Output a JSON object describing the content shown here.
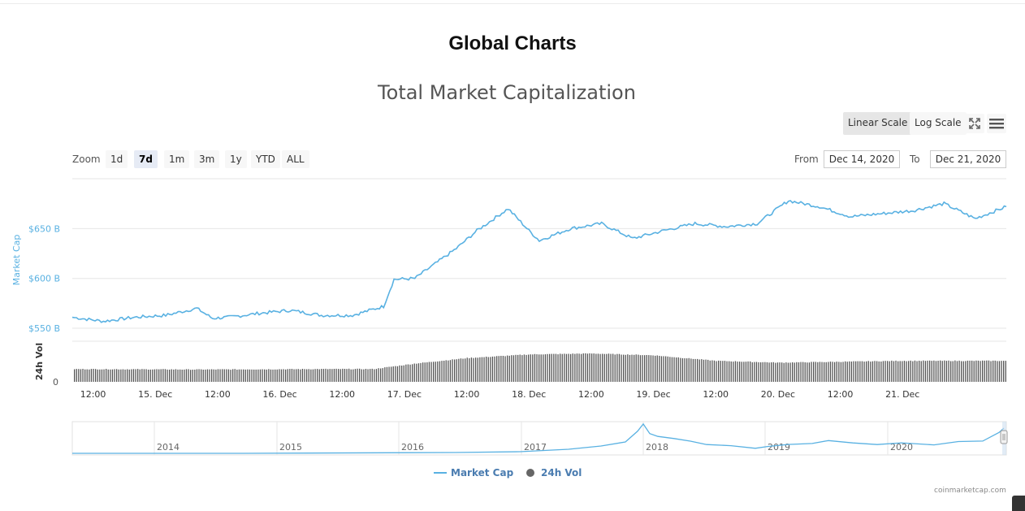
{
  "page": {
    "title": "Global Charts"
  },
  "toolbar": {
    "linear_label": "Linear Scale",
    "log_label": "Log Scale",
    "fullscreen_icon": "fullscreen-icon",
    "menu_icon": "hamburger-menu-icon"
  },
  "zoom": {
    "label": "Zoom",
    "buttons": [
      "1d",
      "7d",
      "1m",
      "3m",
      "1y",
      "YTD",
      "ALL"
    ],
    "active": "7d"
  },
  "range": {
    "from_label": "From",
    "from_value": "Dec 14, 2020",
    "to_label": "To",
    "to_value": "Dec 21, 2020"
  },
  "credits": "coinmarketcap.com",
  "colors": {
    "market_cap": "#59b1e2",
    "volume": "#555555",
    "grid": "#e6e6e6",
    "navigator": "#59b1e2"
  },
  "chart_data": {
    "type": "line",
    "title": "Total Market Capitalization",
    "y_axis_label": "Market Cap",
    "y2_axis_label": "24h Vol",
    "y_ticks": [
      "$550 B",
      "$600 B",
      "$650 B"
    ],
    "y_tick_values": [
      550,
      600,
      650
    ],
    "y_range": [
      537,
      700
    ],
    "y2_ticks": [
      "0"
    ],
    "x_ticks": [
      "12:00",
      "15. Dec",
      "12:00",
      "16. Dec",
      "12:00",
      "17. Dec",
      "12:00",
      "18. Dec",
      "12:00",
      "19. Dec",
      "12:00",
      "20. Dec",
      "12:00",
      "21. Dec"
    ],
    "x_range": [
      "2020-12-14T08:00",
      "2020-12-21T20:00"
    ],
    "legend": [
      "Market Cap",
      "24h Vol"
    ],
    "legend_position": "bottom-center",
    "series": [
      {
        "name": "Market Cap",
        "unit": "B USD",
        "x": [
          "2020-12-14T08:00",
          "2020-12-14T14:00",
          "2020-12-14T20:00",
          "2020-12-15T02:00",
          "2020-12-15T08:00",
          "2020-12-15T11:00",
          "2020-12-15T14:00",
          "2020-12-15T20:00",
          "2020-12-16T02:00",
          "2020-12-16T08:00",
          "2020-12-16T14:00",
          "2020-12-16T20:00",
          "2020-12-16T22:00",
          "2020-12-17T02:00",
          "2020-12-17T06:00",
          "2020-12-17T10:00",
          "2020-12-17T14:00",
          "2020-12-17T20:00",
          "2020-12-18T00:00",
          "2020-12-18T02:00",
          "2020-12-18T08:00",
          "2020-12-18T14:00",
          "2020-12-18T20:00",
          "2020-12-19T02:00",
          "2020-12-19T08:00",
          "2020-12-19T14:00",
          "2020-12-19T20:00",
          "2020-12-20T02:00",
          "2020-12-20T08:00",
          "2020-12-20T14:00",
          "2020-12-20T20:00",
          "2020-12-21T02:00",
          "2020-12-21T08:00",
          "2020-12-21T14:00",
          "2020-12-21T20:00"
        ],
        "y": [
          561,
          557,
          561,
          563,
          570,
          560,
          561,
          565,
          568,
          563,
          563,
          572,
          599,
          600,
          615,
          630,
          648,
          670,
          648,
          638,
          650,
          655,
          640,
          648,
          655,
          652,
          655,
          678,
          672,
          662,
          665,
          668,
          675,
          660,
          672
        ]
      },
      {
        "name": "24h Vol",
        "unit": "B USD",
        "x": [
          "2020-12-14T08:00",
          "2020-12-15T08:00",
          "2020-12-16T08:00",
          "2020-12-16T18:00",
          "2020-12-17T02:00",
          "2020-12-17T12:00",
          "2020-12-18T00:00",
          "2020-12-18T12:00",
          "2020-12-19T00:00",
          "2020-12-19T12:00",
          "2020-12-20T00:00",
          "2020-12-20T12:00",
          "2020-12-21T00:00",
          "2020-12-21T20:00"
        ],
        "y": [
          14,
          13.5,
          14,
          14,
          20,
          26,
          30,
          31,
          29,
          23,
          21,
          22,
          23,
          23
        ]
      }
    ],
    "navigator": {
      "x_ticks": [
        "2014",
        "2015",
        "2016",
        "2017",
        "2018",
        "2019",
        "2020"
      ],
      "series_name": "Market Cap"
    }
  }
}
